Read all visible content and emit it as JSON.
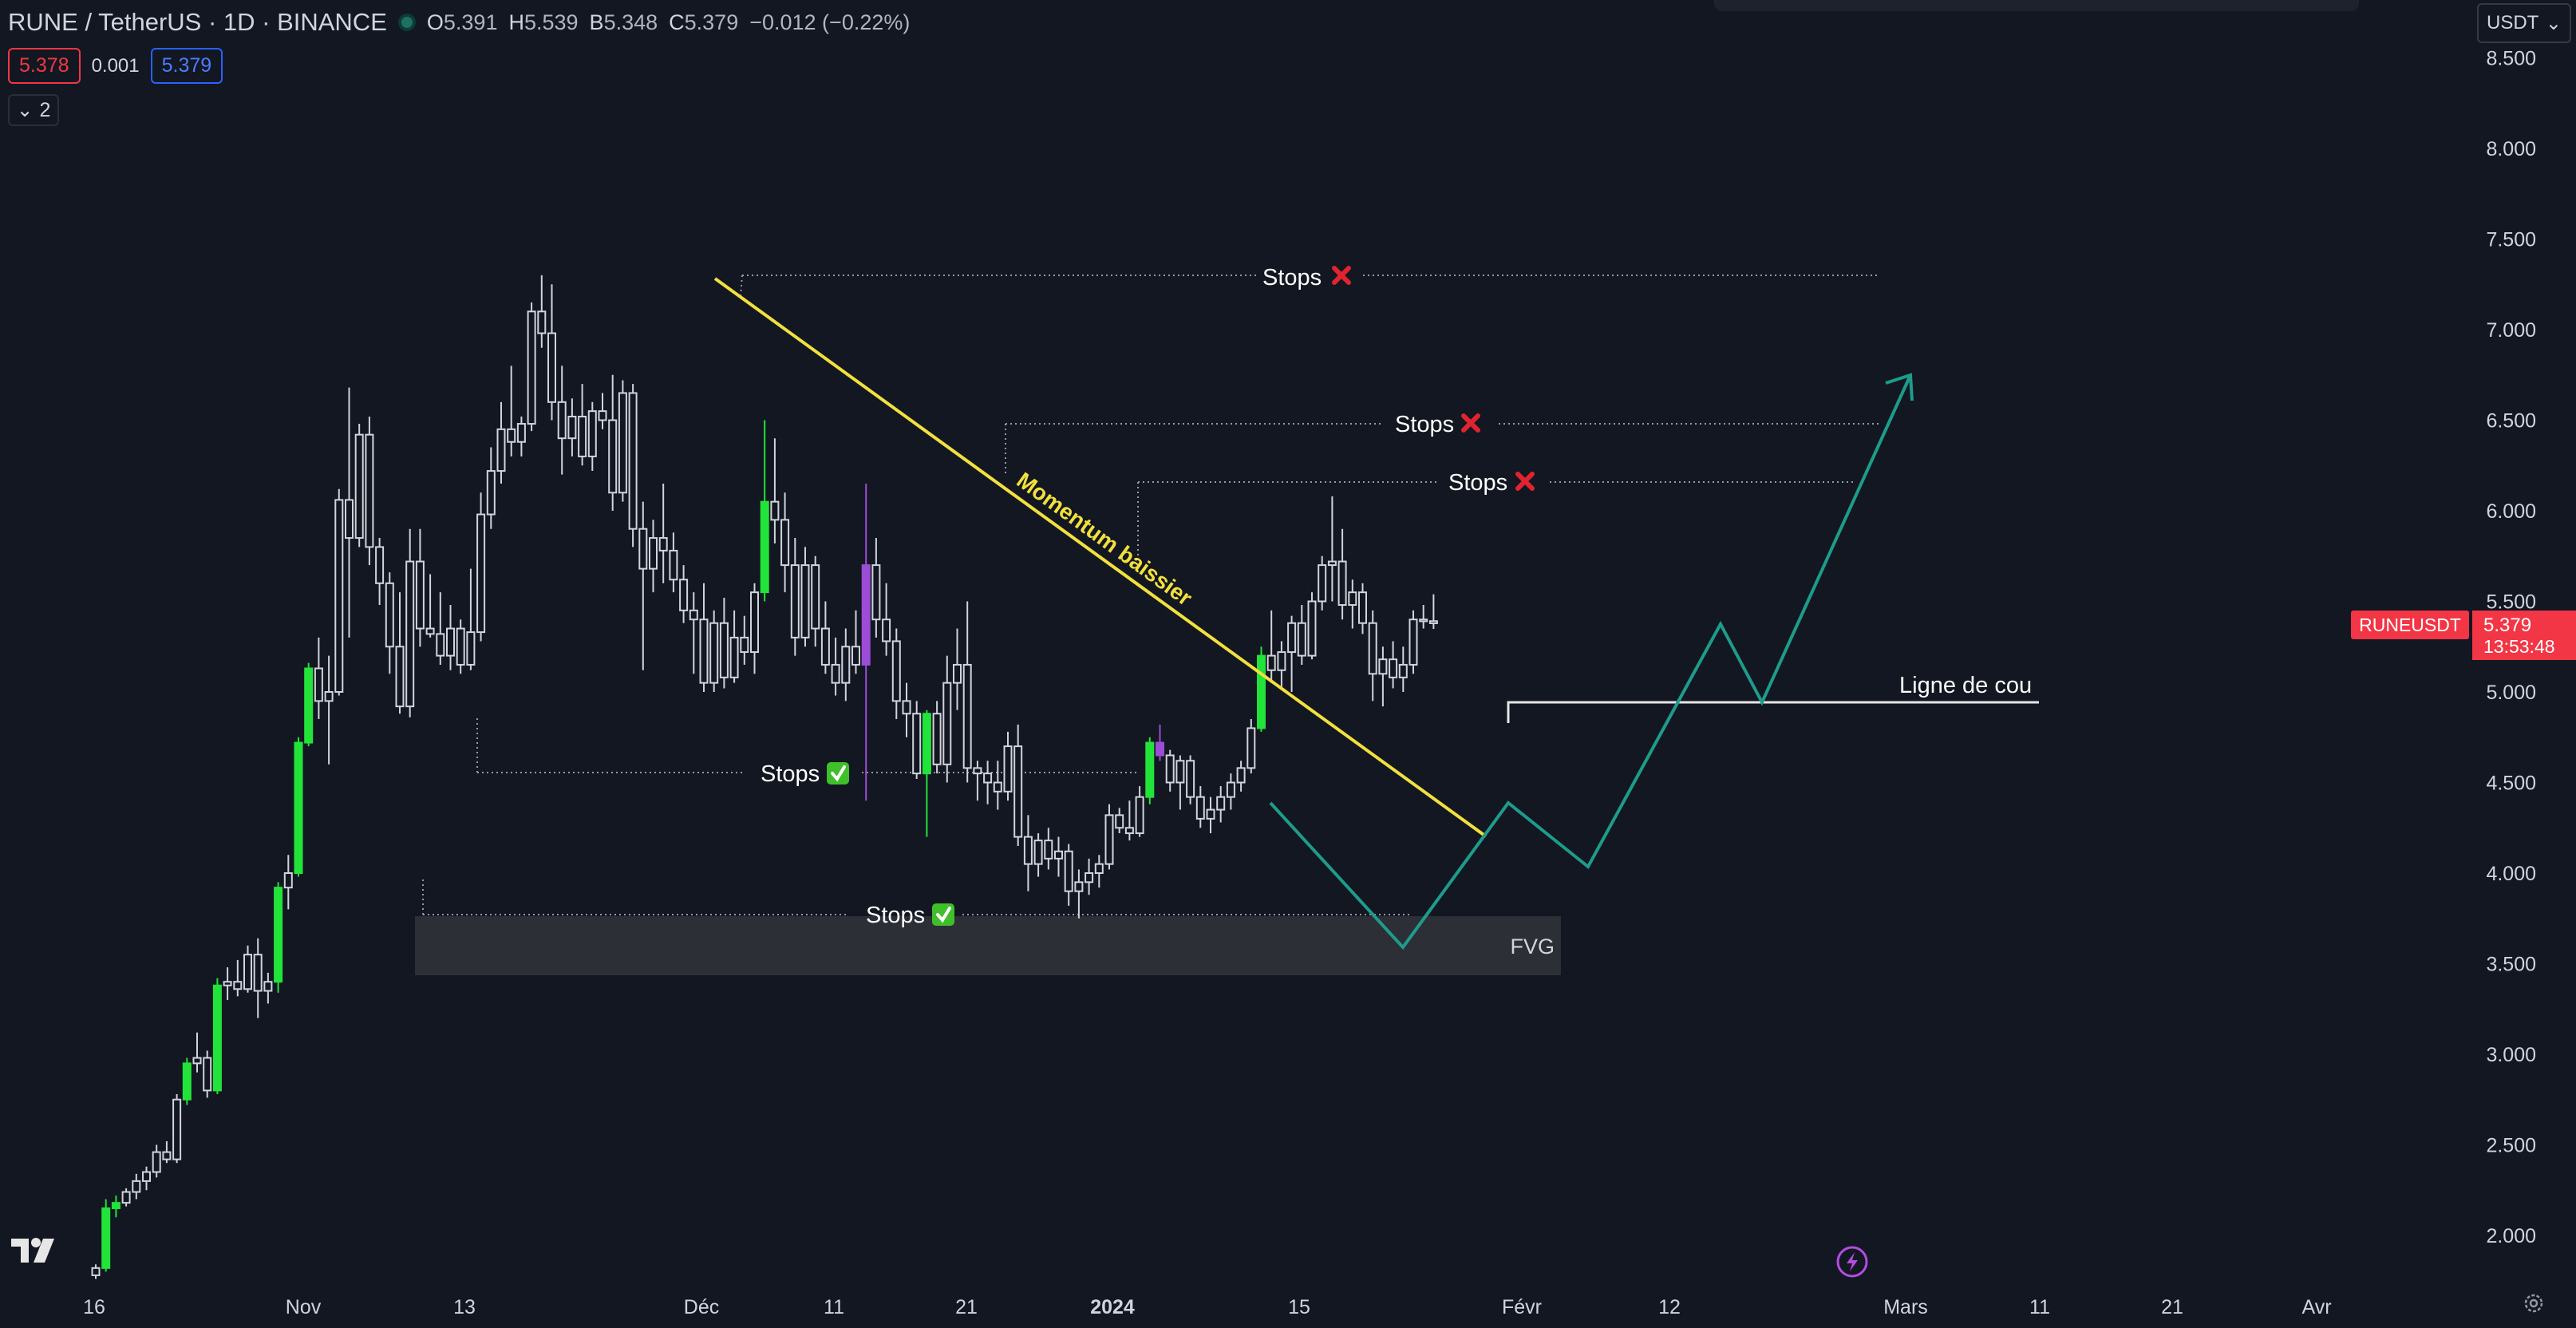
{
  "header": {
    "title": "RUNE / TetherUS · 1D · BINANCE",
    "ohlc": {
      "o_label": "O",
      "o": "5.391",
      "h_label": "H",
      "h": "5.539",
      "l_label": "B",
      "l": "5.348",
      "c_label": "C",
      "c": "5.379",
      "change": "−0.012 (−0.22%)"
    },
    "sell_price": "5.378",
    "spread": "0.001",
    "buy_price": "5.379",
    "indicators_toggle": "2",
    "currency": "USDT"
  },
  "price_axis": {
    "ticks": [
      "8.500",
      "8.000",
      "7.500",
      "7.000",
      "6.500",
      "6.000",
      "5.500",
      "5.000",
      "4.500",
      "4.000",
      "3.500",
      "3.000",
      "2.500",
      "2.000"
    ],
    "symbol_tag": "RUNEUSDT",
    "last_price": "5.379",
    "countdown": "13:53:48"
  },
  "time_axis": {
    "ticks": [
      "16",
      "Nov",
      "13",
      "Déc",
      "11",
      "21",
      "2024",
      "15",
      "Févr",
      "12",
      "Mars",
      "11",
      "21",
      "Avr"
    ]
  },
  "annotations": {
    "stops_top": "Stops",
    "stops_mid": "Stops",
    "stops_right": "Stops",
    "stops_left": "Stops",
    "stops_bottom": "Stops",
    "momentum": "Momentum baissier",
    "fvg": "FVG",
    "neckline": "Ligne de cou"
  },
  "colors": {
    "background": "#131722",
    "bull_candle": "#22e33a",
    "bear_candle": "#d1d4dc",
    "purple_candle": "#9c4dd6",
    "trendline": "#f2e03d",
    "pattern": "#1d9c8a",
    "sell": "#f23645",
    "buy": "#2962ff"
  },
  "icons": {
    "cross": "red-x-icon",
    "check": "green-check-icon",
    "logo": "tradingview-logo-icon",
    "flash": "lightning-icon",
    "settings": "gear-icon"
  },
  "chart_data": {
    "type": "candlestick",
    "symbol": "RUNE / TetherUS",
    "interval": "1D",
    "ylim": [
      1.8,
      8.6
    ],
    "candles": [
      {
        "o": 1.78,
        "h": 1.84,
        "l": 1.76,
        "c": 1.82,
        "bull": true
      },
      {
        "o": 1.82,
        "h": 2.2,
        "l": 1.8,
        "c": 2.15,
        "bull": true,
        "g": 1
      },
      {
        "o": 2.15,
        "h": 2.22,
        "l": 2.1,
        "c": 2.18,
        "bull": true,
        "g": 1
      },
      {
        "o": 2.18,
        "h": 2.26,
        "l": 2.16,
        "c": 2.24,
        "bull": true
      },
      {
        "o": 2.24,
        "h": 2.34,
        "l": 2.2,
        "c": 2.3,
        "bull": true
      },
      {
        "o": 2.3,
        "h": 2.38,
        "l": 2.25,
        "c": 2.35,
        "bull": true
      },
      {
        "o": 2.35,
        "h": 2.5,
        "l": 2.32,
        "c": 2.46,
        "bull": true
      },
      {
        "o": 2.46,
        "h": 2.52,
        "l": 2.4,
        "c": 2.42,
        "bull": false
      },
      {
        "o": 2.42,
        "h": 2.78,
        "l": 2.4,
        "c": 2.75,
        "bull": true
      },
      {
        "o": 2.75,
        "h": 2.98,
        "l": 2.72,
        "c": 2.95,
        "bull": true,
        "g": 1
      },
      {
        "o": 2.95,
        "h": 3.12,
        "l": 2.9,
        "c": 2.98,
        "bull": true
      },
      {
        "o": 2.98,
        "h": 3.02,
        "l": 2.76,
        "c": 2.8,
        "bull": false
      },
      {
        "o": 2.8,
        "h": 3.42,
        "l": 2.78,
        "c": 3.38,
        "bull": true,
        "g": 1
      },
      {
        "o": 3.38,
        "h": 3.48,
        "l": 3.3,
        "c": 3.4,
        "bull": true
      },
      {
        "o": 3.4,
        "h": 3.52,
        "l": 3.32,
        "c": 3.36,
        "bull": false
      },
      {
        "o": 3.36,
        "h": 3.6,
        "l": 3.34,
        "c": 3.55,
        "bull": true
      },
      {
        "o": 3.55,
        "h": 3.64,
        "l": 3.2,
        "c": 3.35,
        "bull": false
      },
      {
        "o": 3.35,
        "h": 3.45,
        "l": 3.28,
        "c": 3.4,
        "bull": true
      },
      {
        "o": 3.4,
        "h": 3.95,
        "l": 3.34,
        "c": 3.92,
        "bull": true,
        "g": 1
      },
      {
        "o": 3.92,
        "h": 4.1,
        "l": 3.8,
        "c": 4.0,
        "bull": true
      },
      {
        "o": 4.0,
        "h": 4.75,
        "l": 3.98,
        "c": 4.72,
        "bull": true,
        "g": 1
      },
      {
        "o": 4.72,
        "h": 5.16,
        "l": 4.7,
        "c": 5.13,
        "bull": true,
        "g": 1
      },
      {
        "o": 5.13,
        "h": 5.3,
        "l": 4.85,
        "c": 4.95,
        "bull": false
      },
      {
        "o": 4.95,
        "h": 5.2,
        "l": 4.6,
        "c": 5.0,
        "bull": true
      },
      {
        "o": 5.0,
        "h": 6.12,
        "l": 4.98,
        "c": 6.06,
        "bull": true
      },
      {
        "o": 6.06,
        "h": 6.68,
        "l": 5.3,
        "c": 5.85,
        "bull": false
      },
      {
        "o": 5.85,
        "h": 6.48,
        "l": 5.8,
        "c": 6.42,
        "bull": true
      },
      {
        "o": 6.42,
        "h": 6.52,
        "l": 5.7,
        "c": 5.8,
        "bull": false
      },
      {
        "o": 5.8,
        "h": 5.85,
        "l": 5.48,
        "c": 5.6,
        "bull": false
      },
      {
        "o": 5.6,
        "h": 5.66,
        "l": 5.1,
        "c": 5.25,
        "bull": false
      },
      {
        "o": 5.25,
        "h": 5.55,
        "l": 4.88,
        "c": 4.92,
        "bull": false
      },
      {
        "o": 4.92,
        "h": 5.9,
        "l": 4.86,
        "c": 5.72,
        "bull": true
      },
      {
        "o": 5.72,
        "h": 5.9,
        "l": 5.25,
        "c": 5.35,
        "bull": false
      },
      {
        "o": 5.35,
        "h": 5.65,
        "l": 5.3,
        "c": 5.32,
        "bull": false
      },
      {
        "o": 5.32,
        "h": 5.55,
        "l": 5.15,
        "c": 5.2,
        "bull": false
      },
      {
        "o": 5.2,
        "h": 5.48,
        "l": 5.12,
        "c": 5.35,
        "bull": true
      },
      {
        "o": 5.35,
        "h": 5.4,
        "l": 5.1,
        "c": 5.15,
        "bull": false
      },
      {
        "o": 5.15,
        "h": 5.68,
        "l": 5.12,
        "c": 5.33,
        "bull": true
      },
      {
        "o": 5.33,
        "h": 6.1,
        "l": 5.28,
        "c": 5.98,
        "bull": true
      },
      {
        "o": 5.98,
        "h": 6.35,
        "l": 5.9,
        "c": 6.22,
        "bull": true
      },
      {
        "o": 6.22,
        "h": 6.6,
        "l": 6.15,
        "c": 6.45,
        "bull": true
      },
      {
        "o": 6.45,
        "h": 6.8,
        "l": 6.3,
        "c": 6.38,
        "bull": false
      },
      {
        "o": 6.38,
        "h": 6.52,
        "l": 6.3,
        "c": 6.48,
        "bull": true
      },
      {
        "o": 6.48,
        "h": 7.15,
        "l": 6.44,
        "c": 7.1,
        "bull": true
      },
      {
        "o": 7.1,
        "h": 7.3,
        "l": 6.9,
        "c": 6.98,
        "bull": false
      },
      {
        "o": 6.98,
        "h": 7.25,
        "l": 6.5,
        "c": 6.6,
        "bull": false
      },
      {
        "o": 6.6,
        "h": 6.8,
        "l": 6.2,
        "c": 6.4,
        "bull": false
      },
      {
        "o": 6.4,
        "h": 6.62,
        "l": 6.3,
        "c": 6.52,
        "bull": true
      },
      {
        "o": 6.52,
        "h": 6.7,
        "l": 6.25,
        "c": 6.3,
        "bull": false
      },
      {
        "o": 6.3,
        "h": 6.6,
        "l": 6.22,
        "c": 6.55,
        "bull": true
      },
      {
        "o": 6.55,
        "h": 6.65,
        "l": 6.45,
        "c": 6.5,
        "bull": false
      },
      {
        "o": 6.5,
        "h": 6.75,
        "l": 6.0,
        "c": 6.1,
        "bull": false
      },
      {
        "o": 6.1,
        "h": 6.72,
        "l": 6.05,
        "c": 6.65,
        "bull": true
      },
      {
        "o": 6.65,
        "h": 6.7,
        "l": 5.8,
        "c": 5.9,
        "bull": false
      },
      {
        "o": 5.9,
        "h": 6.05,
        "l": 5.12,
        "c": 5.68,
        "bull": false
      },
      {
        "o": 5.68,
        "h": 5.95,
        "l": 5.55,
        "c": 5.85,
        "bull": true
      },
      {
        "o": 5.85,
        "h": 6.15,
        "l": 5.6,
        "c": 5.78,
        "bull": false
      },
      {
        "o": 5.78,
        "h": 5.88,
        "l": 5.55,
        "c": 5.62,
        "bull": false
      },
      {
        "o": 5.62,
        "h": 5.7,
        "l": 5.38,
        "c": 5.45,
        "bull": false
      },
      {
        "o": 5.45,
        "h": 5.55,
        "l": 5.1,
        "c": 5.4,
        "bull": false
      },
      {
        "o": 5.4,
        "h": 5.6,
        "l": 5.0,
        "c": 5.05,
        "bull": false
      },
      {
        "o": 5.05,
        "h": 5.45,
        "l": 5.0,
        "c": 5.38,
        "bull": true
      },
      {
        "o": 5.38,
        "h": 5.52,
        "l": 5.02,
        "c": 5.08,
        "bull": false
      },
      {
        "o": 5.08,
        "h": 5.45,
        "l": 5.05,
        "c": 5.3,
        "bull": true
      },
      {
        "o": 5.3,
        "h": 5.42,
        "l": 5.15,
        "c": 5.22,
        "bull": false
      },
      {
        "o": 5.22,
        "h": 5.6,
        "l": 5.1,
        "c": 5.55,
        "bull": true
      },
      {
        "o": 5.55,
        "h": 6.5,
        "l": 5.5,
        "c": 6.05,
        "bull": true,
        "g": 1
      },
      {
        "o": 6.05,
        "h": 6.4,
        "l": 5.82,
        "c": 5.95,
        "bull": false
      },
      {
        "o": 5.95,
        "h": 6.1,
        "l": 5.55,
        "c": 5.7,
        "bull": false
      },
      {
        "o": 5.7,
        "h": 5.85,
        "l": 5.2,
        "c": 5.3,
        "bull": false
      },
      {
        "o": 5.3,
        "h": 5.8,
        "l": 5.25,
        "c": 5.7,
        "bull": true
      },
      {
        "o": 5.7,
        "h": 5.75,
        "l": 5.25,
        "c": 5.35,
        "bull": false
      },
      {
        "o": 5.35,
        "h": 5.5,
        "l": 5.1,
        "c": 5.15,
        "bull": false
      },
      {
        "o": 5.15,
        "h": 5.3,
        "l": 4.98,
        "c": 5.05,
        "bull": false
      },
      {
        "o": 5.05,
        "h": 5.35,
        "l": 4.95,
        "c": 5.25,
        "bull": true
      },
      {
        "o": 5.25,
        "h": 5.45,
        "l": 5.1,
        "c": 5.15,
        "bull": false
      },
      {
        "o": 5.15,
        "h": 6.15,
        "l": 4.4,
        "c": 5.7,
        "bull": false,
        "p": 1
      },
      {
        "o": 5.7,
        "h": 5.85,
        "l": 5.3,
        "c": 5.4,
        "bull": false
      },
      {
        "o": 5.4,
        "h": 5.6,
        "l": 5.2,
        "c": 5.28,
        "bull": false
      },
      {
        "o": 5.28,
        "h": 5.35,
        "l": 4.85,
        "c": 4.95,
        "bull": false
      },
      {
        "o": 4.95,
        "h": 5.05,
        "l": 4.75,
        "c": 4.88,
        "bull": false
      },
      {
        "o": 4.88,
        "h": 4.95,
        "l": 4.52,
        "c": 4.55,
        "bull": false
      },
      {
        "o": 4.55,
        "h": 4.9,
        "l": 4.2,
        "c": 4.88,
        "bull": true,
        "g": 1
      },
      {
        "o": 4.88,
        "h": 4.95,
        "l": 4.55,
        "c": 4.6,
        "bull": false
      },
      {
        "o": 4.6,
        "h": 5.2,
        "l": 4.5,
        "c": 5.05,
        "bull": true
      },
      {
        "o": 5.05,
        "h": 5.35,
        "l": 4.9,
        "c": 5.15,
        "bull": true
      },
      {
        "o": 5.15,
        "h": 5.5,
        "l": 4.5,
        "c": 4.58,
        "bull": false
      },
      {
        "o": 4.58,
        "h": 4.62,
        "l": 4.4,
        "c": 4.55,
        "bull": false
      },
      {
        "o": 4.55,
        "h": 4.62,
        "l": 4.38,
        "c": 4.5,
        "bull": false
      },
      {
        "o": 4.5,
        "h": 4.62,
        "l": 4.35,
        "c": 4.45,
        "bull": false
      },
      {
        "o": 4.45,
        "h": 4.78,
        "l": 4.4,
        "c": 4.7,
        "bull": true
      },
      {
        "o": 4.7,
        "h": 4.82,
        "l": 4.15,
        "c": 4.2,
        "bull": false
      },
      {
        "o": 4.2,
        "h": 4.32,
        "l": 3.9,
        "c": 4.05,
        "bull": false
      },
      {
        "o": 4.05,
        "h": 4.22,
        "l": 3.98,
        "c": 4.18,
        "bull": true
      },
      {
        "o": 4.18,
        "h": 4.25,
        "l": 4.02,
        "c": 4.08,
        "bull": false
      },
      {
        "o": 4.08,
        "h": 4.2,
        "l": 3.98,
        "c": 4.12,
        "bull": true
      },
      {
        "o": 4.12,
        "h": 4.16,
        "l": 3.82,
        "c": 3.9,
        "bull": false
      },
      {
        "o": 3.9,
        "h": 4.02,
        "l": 3.75,
        "c": 3.95,
        "bull": true
      },
      {
        "o": 3.95,
        "h": 4.08,
        "l": 3.88,
        "c": 4.0,
        "bull": true
      },
      {
        "o": 4.0,
        "h": 4.1,
        "l": 3.92,
        "c": 4.05,
        "bull": true
      },
      {
        "o": 4.05,
        "h": 4.38,
        "l": 4.02,
        "c": 4.32,
        "bull": true
      },
      {
        "o": 4.32,
        "h": 4.36,
        "l": 4.22,
        "c": 4.25,
        "bull": false
      },
      {
        "o": 4.25,
        "h": 4.4,
        "l": 4.18,
        "c": 4.22,
        "bull": false
      },
      {
        "o": 4.22,
        "h": 4.48,
        "l": 4.2,
        "c": 4.42,
        "bull": true
      },
      {
        "o": 4.42,
        "h": 4.75,
        "l": 4.38,
        "c": 4.72,
        "bull": true,
        "g": 1
      },
      {
        "o": 4.72,
        "h": 4.82,
        "l": 4.62,
        "c": 4.65,
        "bull": false,
        "p": 1
      },
      {
        "o": 4.65,
        "h": 4.68,
        "l": 4.45,
        "c": 4.5,
        "bull": false
      },
      {
        "o": 4.5,
        "h": 4.65,
        "l": 4.35,
        "c": 4.62,
        "bull": true
      },
      {
        "o": 4.62,
        "h": 4.65,
        "l": 4.38,
        "c": 4.42,
        "bull": false
      },
      {
        "o": 4.42,
        "h": 4.48,
        "l": 4.25,
        "c": 4.3,
        "bull": false
      },
      {
        "o": 4.3,
        "h": 4.42,
        "l": 4.22,
        "c": 4.35,
        "bull": true
      },
      {
        "o": 4.35,
        "h": 4.48,
        "l": 4.28,
        "c": 4.42,
        "bull": true
      },
      {
        "o": 4.42,
        "h": 4.55,
        "l": 4.35,
        "c": 4.5,
        "bull": true
      },
      {
        "o": 4.5,
        "h": 4.62,
        "l": 4.45,
        "c": 4.58,
        "bull": true
      },
      {
        "o": 4.58,
        "h": 4.85,
        "l": 4.55,
        "c": 4.8,
        "bull": true
      },
      {
        "o": 4.8,
        "h": 5.25,
        "l": 4.78,
        "c": 5.2,
        "bull": true,
        "g": 1
      },
      {
        "o": 5.2,
        "h": 5.45,
        "l": 5.05,
        "c": 5.12,
        "bull": false
      },
      {
        "o": 5.12,
        "h": 5.28,
        "l": 5.02,
        "c": 5.22,
        "bull": true
      },
      {
        "o": 5.22,
        "h": 5.42,
        "l": 5.0,
        "c": 5.38,
        "bull": true
      },
      {
        "o": 5.38,
        "h": 5.48,
        "l": 5.15,
        "c": 5.2,
        "bull": false
      },
      {
        "o": 5.2,
        "h": 5.55,
        "l": 5.18,
        "c": 5.5,
        "bull": true
      },
      {
        "o": 5.5,
        "h": 5.75,
        "l": 5.45,
        "c": 5.7,
        "bull": true
      },
      {
        "o": 5.7,
        "h": 6.08,
        "l": 5.5,
        "c": 5.72,
        "bull": true
      },
      {
        "o": 5.72,
        "h": 5.9,
        "l": 5.4,
        "c": 5.48,
        "bull": false
      },
      {
        "o": 5.48,
        "h": 5.62,
        "l": 5.35,
        "c": 5.55,
        "bull": true
      },
      {
        "o": 5.55,
        "h": 5.6,
        "l": 5.32,
        "c": 5.38,
        "bull": false
      },
      {
        "o": 5.38,
        "h": 5.45,
        "l": 4.95,
        "c": 5.1,
        "bull": false
      },
      {
        "o": 5.1,
        "h": 5.25,
        "l": 4.92,
        "c": 5.18,
        "bull": true
      },
      {
        "o": 5.18,
        "h": 5.28,
        "l": 5.02,
        "c": 5.08,
        "bull": false
      },
      {
        "o": 5.08,
        "h": 5.25,
        "l": 5.0,
        "c": 5.15,
        "bull": true
      },
      {
        "o": 5.15,
        "h": 5.45,
        "l": 5.1,
        "c": 5.4,
        "bull": true
      },
      {
        "o": 5.4,
        "h": 5.48,
        "l": 5.35,
        "c": 5.39,
        "bull": false
      },
      {
        "o": 5.391,
        "h": 5.539,
        "l": 5.348,
        "c": 5.379,
        "bull": false
      }
    ]
  }
}
